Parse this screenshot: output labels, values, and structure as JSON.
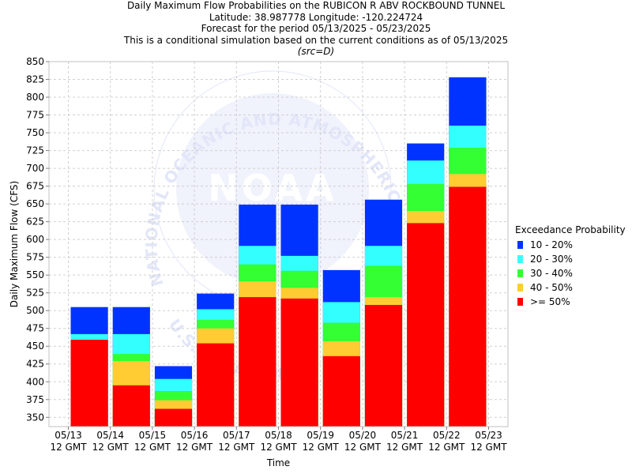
{
  "chart_data": {
    "type": "bar",
    "title_lines": [
      "Daily Maximum Flow Probabilities on the RUBICON R ABV ROCKBOUND TUNNEL",
      "Latitude: 38.987778 Longitude: -120.224724",
      "Forecast for the period 05/13/2025 - 05/23/2025",
      "This is a conditional simulation based on the current conditions as of 05/13/2025"
    ],
    "subtitle": "(src=D)",
    "xlabel": "Time",
    "ylabel": "Daily Maximum Flow (CFS)",
    "ylim": [
      337,
      850
    ],
    "yticks": [
      350,
      375,
      400,
      425,
      450,
      475,
      500,
      525,
      550,
      575,
      600,
      625,
      650,
      675,
      700,
      725,
      750,
      775,
      800,
      825,
      850
    ],
    "xticks": [
      {
        "date": "05/13",
        "time": "12 GMT"
      },
      {
        "date": "05/14",
        "time": "12 GMT"
      },
      {
        "date": "05/15",
        "time": "12 GMT"
      },
      {
        "date": "05/16",
        "time": "12 GMT"
      },
      {
        "date": "05/17",
        "time": "12 GMT"
      },
      {
        "date": "05/18",
        "time": "12 GMT"
      },
      {
        "date": "05/19",
        "time": "12 GMT"
      },
      {
        "date": "05/20",
        "time": "12 GMT"
      },
      {
        "date": "05/21",
        "time": "12 GMT"
      },
      {
        "date": "05/22",
        "time": "12 GMT"
      },
      {
        "date": "05/23",
        "time": "12 GMT"
      }
    ],
    "grid": true,
    "legend": {
      "title": "Exceedance Probability",
      "placement": "right",
      "entries": [
        {
          "label": "10 - 20%",
          "color": "#0033ff"
        },
        {
          "label": "20 - 30%",
          "color": "#33ffff"
        },
        {
          "label": "30 - 40%",
          "color": "#33ff33"
        },
        {
          "label": "40 - 50%",
          "color": "#ffcc33"
        },
        {
          "label": ">= 50%",
          "color": "#ff0000"
        }
      ]
    },
    "series_order_bottom_to_top": [
      ">= 50%",
      "40 - 50%",
      "30 - 40%",
      "20 - 30%",
      "10 - 20%"
    ],
    "bars": [
      {
        "day": "05/13 - 05/14",
        "ge50": 459,
        "p40_50": 459,
        "p30_40": 459,
        "p20_30": 467,
        "p10_20": 505
      },
      {
        "day": "05/14 - 05/15",
        "ge50": 395,
        "p40_50": 429,
        "p30_40": 439,
        "p20_30": 467,
        "p10_20": 505
      },
      {
        "day": "05/15 - 05/16",
        "ge50": 362,
        "p40_50": 374,
        "p30_40": 387,
        "p20_30": 404,
        "p10_20": 422
      },
      {
        "day": "05/16 - 05/17",
        "ge50": 454,
        "p40_50": 475,
        "p30_40": 487,
        "p20_30": 502,
        "p10_20": 524
      },
      {
        "day": "05/17 - 05/18",
        "ge50": 519,
        "p40_50": 541,
        "p30_40": 565,
        "p20_30": 591,
        "p10_20": 649
      },
      {
        "day": "05/18 - 05/19",
        "ge50": 517,
        "p40_50": 532,
        "p30_40": 556,
        "p20_30": 577,
        "p10_20": 649
      },
      {
        "day": "05/19 - 05/20",
        "ge50": 436,
        "p40_50": 457,
        "p30_40": 483,
        "p20_30": 512,
        "p10_20": 557
      },
      {
        "day": "05/20 - 05/21",
        "ge50": 508,
        "p40_50": 519,
        "p30_40": 563,
        "p20_30": 591,
        "p10_20": 656
      },
      {
        "day": "05/21 - 05/22",
        "ge50": 623,
        "p40_50": 640,
        "p30_40": 678,
        "p20_30": 711,
        "p10_20": 735
      },
      {
        "day": "05/22 - 05/23",
        "ge50": 674,
        "p40_50": 692,
        "p30_40": 729,
        "p20_30": 760,
        "p10_20": 828
      }
    ]
  },
  "watermark": {
    "logo_text": "NOAA",
    "ring_text": "NATIONAL OCEANIC AND ATMOSPHERIC ADMINISTRATION",
    "ring_text_bottom": "U.S. DEPARTMENT OF COMMERCE",
    "color": "#e2e6f8"
  },
  "colors": {
    "grid": "#d0d0d0",
    "axis": "#808080",
    "plot_bg": "#ffffff"
  }
}
